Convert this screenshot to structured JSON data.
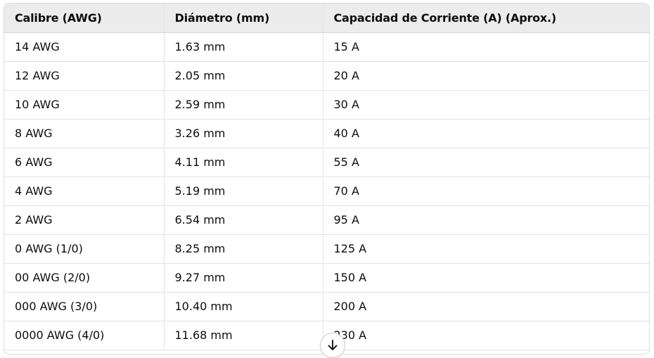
{
  "table": {
    "headers": [
      "Calibre (AWG)",
      "Diámetro (mm)",
      "Capacidad de Corriente (A) (Aprox.)"
    ],
    "rows": [
      [
        "14 AWG",
        "1.63 mm",
        "15 A"
      ],
      [
        "12 AWG",
        "2.05 mm",
        "20 A"
      ],
      [
        "10 AWG",
        "2.59 mm",
        "30 A"
      ],
      [
        "8 AWG",
        "3.26 mm",
        "40 A"
      ],
      [
        "6 AWG",
        "4.11 mm",
        "55 A"
      ],
      [
        "4 AWG",
        "5.19 mm",
        "70 A"
      ],
      [
        "2 AWG",
        "6.54 mm",
        "95 A"
      ],
      [
        "0 AWG (1/0)",
        "8.25 mm",
        "125 A"
      ],
      [
        "00 AWG (2/0)",
        "9.27 mm",
        "150 A"
      ],
      [
        "000 AWG (3/0)",
        "10.40 mm",
        "200 A"
      ],
      [
        "0000 AWG (4/0)",
        "11.68 mm",
        "230 A"
      ]
    ]
  },
  "scroll_button": {
    "icon": "arrow-down-icon"
  },
  "colors": {
    "header_bg": "#ececec",
    "border": "#e3e3e3",
    "text": "#0d0d0d"
  }
}
